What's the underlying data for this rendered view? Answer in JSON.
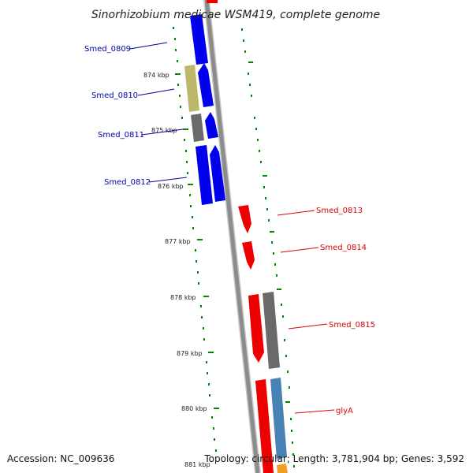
{
  "title": "Sinorhizobium medicae WSM419, complete genome",
  "accession_text": "Accession: NC_009636",
  "topology_text": "Topology: circular; Length: 3,781,904 bp; Genes: 3,592",
  "colors": {
    "cds_forward": "#0000ee",
    "cds_reverse": "#ee0000",
    "other_gene": "#6a6a6a",
    "khaki_feature": "#bdb76b",
    "steelblue_feature": "#4682b4",
    "orange_feature": "#f0a020",
    "backbone": "#8c8c8c",
    "tick": "#008800",
    "label_forward": "#0000aa",
    "label_reverse": "#dd0000"
  },
  "scale": {
    "unit": "kbp",
    "ticks": [
      "874 kbp",
      "875 kbp",
      "876 kbp",
      "877 kbp",
      "878 kbp",
      "879 kbp",
      "880 kbp",
      "881 kbp"
    ]
  },
  "gene_labels": [
    {
      "name": "Smed_0809",
      "strand": "forward"
    },
    {
      "name": "Smed_0810",
      "strand": "forward"
    },
    {
      "name": "Smed_0811",
      "strand": "forward"
    },
    {
      "name": "Smed_0812",
      "strand": "forward"
    },
    {
      "name": "Smed_0813",
      "strand": "reverse"
    },
    {
      "name": "Smed_0814",
      "strand": "reverse"
    },
    {
      "name": "Smed_0815",
      "strand": "reverse"
    },
    {
      "name": "glyA",
      "strand": "reverse"
    }
  ]
}
